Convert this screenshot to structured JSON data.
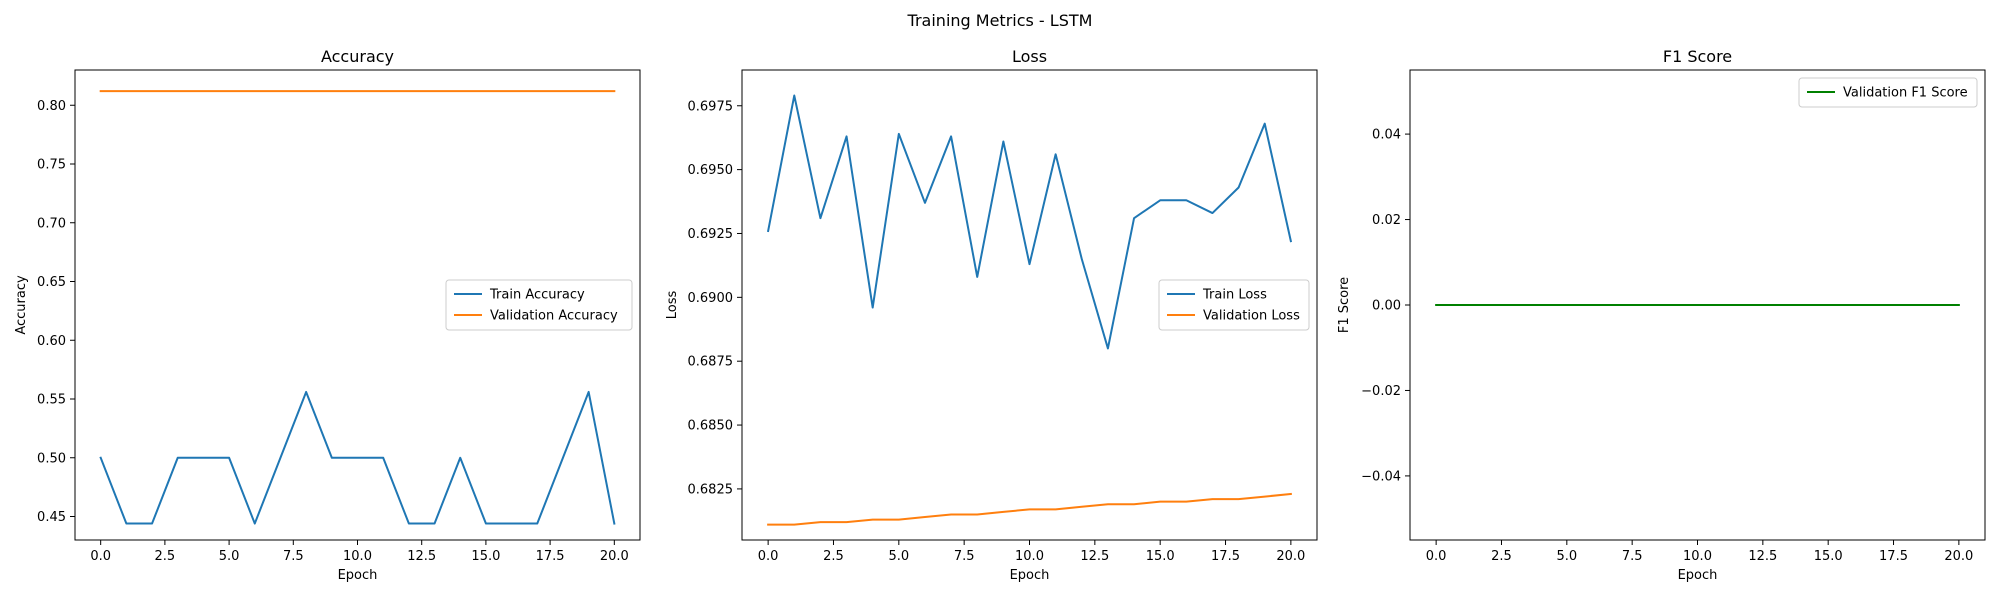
{
  "figure": {
    "title": "Training Metrics - LSTM"
  },
  "chart_data": [
    {
      "type": "line",
      "title": "Accuracy",
      "xlabel": "Epoch",
      "ylabel": "Accuracy",
      "xlim": [
        -1,
        21
      ],
      "ylim": [
        0.43,
        0.83
      ],
      "xticks": [
        0.0,
        2.5,
        5.0,
        7.5,
        10.0,
        12.5,
        15.0,
        17.5,
        20.0
      ],
      "xtick_labels": [
        "0.0",
        "2.5",
        "5.0",
        "7.5",
        "10.0",
        "12.5",
        "15.0",
        "17.5",
        "20.0"
      ],
      "yticks": [
        0.45,
        0.5,
        0.55,
        0.6,
        0.65,
        0.7,
        0.75,
        0.8
      ],
      "ytick_labels": [
        "0.45",
        "0.50",
        "0.55",
        "0.60",
        "0.65",
        "0.70",
        "0.75",
        "0.80"
      ],
      "legend": "center-right",
      "grid": false,
      "x": [
        0,
        1,
        2,
        3,
        4,
        5,
        6,
        7,
        8,
        9,
        10,
        11,
        12,
        13,
        14,
        15,
        16,
        17,
        18,
        19,
        20
      ],
      "series": [
        {
          "name": "Train Accuracy",
          "color": "#1f77b4",
          "values": [
            0.5,
            0.444,
            0.444,
            0.5,
            0.5,
            0.5,
            0.444,
            0.5,
            0.556,
            0.5,
            0.5,
            0.5,
            0.444,
            0.444,
            0.5,
            0.444,
            0.444,
            0.444,
            0.5,
            0.556,
            0.444
          ]
        },
        {
          "name": "Validation Accuracy",
          "color": "#ff7f0e",
          "values": [
            0.812,
            0.812,
            0.812,
            0.812,
            0.812,
            0.812,
            0.812,
            0.812,
            0.812,
            0.812,
            0.812,
            0.812,
            0.812,
            0.812,
            0.812,
            0.812,
            0.812,
            0.812,
            0.812,
            0.812,
            0.812
          ]
        }
      ]
    },
    {
      "type": "line",
      "title": "Loss",
      "xlabel": "Epoch",
      "ylabel": "Loss",
      "xlim": [
        -1,
        21
      ],
      "ylim": [
        0.6805,
        0.6989
      ],
      "xticks": [
        0.0,
        2.5,
        5.0,
        7.5,
        10.0,
        12.5,
        15.0,
        17.5,
        20.0
      ],
      "xtick_labels": [
        "0.0",
        "2.5",
        "5.0",
        "7.5",
        "10.0",
        "12.5",
        "15.0",
        "17.5",
        "20.0"
      ],
      "yticks": [
        0.6825,
        0.685,
        0.6875,
        0.69,
        0.6925,
        0.695,
        0.6975
      ],
      "ytick_labels": [
        "0.6825",
        "0.6850",
        "0.6875",
        "0.6900",
        "0.6925",
        "0.6950",
        "0.6975"
      ],
      "legend": "center-right",
      "grid": false,
      "x": [
        0,
        1,
        2,
        3,
        4,
        5,
        6,
        7,
        8,
        9,
        10,
        11,
        12,
        13,
        14,
        15,
        16,
        17,
        18,
        19,
        20
      ],
      "series": [
        {
          "name": "Train Loss",
          "color": "#1f77b4",
          "values": [
            0.6926,
            0.6979,
            0.6931,
            0.6963,
            0.6896,
            0.6964,
            0.6937,
            0.6963,
            0.6908,
            0.6961,
            0.6913,
            0.6956,
            0.6915,
            0.688,
            0.6931,
            0.6938,
            0.6938,
            0.6933,
            0.6943,
            0.6968,
            0.6922
          ]
        },
        {
          "name": "Validation Loss",
          "color": "#ff7f0e",
          "values": [
            0.6811,
            0.6811,
            0.6812,
            0.6812,
            0.6813,
            0.6813,
            0.6814,
            0.6815,
            0.6815,
            0.6816,
            0.6817,
            0.6817,
            0.6818,
            0.6819,
            0.6819,
            0.682,
            0.682,
            0.6821,
            0.6821,
            0.6822,
            0.6823
          ]
        }
      ]
    },
    {
      "type": "line",
      "title": "F1 Score",
      "xlabel": "Epoch",
      "ylabel": "F1 Score",
      "xlim": [
        -1,
        21
      ],
      "ylim": [
        -0.055,
        0.055
      ],
      "xticks": [
        0.0,
        2.5,
        5.0,
        7.5,
        10.0,
        12.5,
        15.0,
        17.5,
        20.0
      ],
      "xtick_labels": [
        "0.0",
        "2.5",
        "5.0",
        "7.5",
        "10.0",
        "12.5",
        "15.0",
        "17.5",
        "20.0"
      ],
      "yticks": [
        -0.04,
        -0.02,
        0.0,
        0.02,
        0.04
      ],
      "ytick_labels": [
        "−0.04",
        "−0.02",
        "0.00",
        "0.02",
        "0.04"
      ],
      "legend": "top-right",
      "grid": false,
      "x": [
        0,
        1,
        2,
        3,
        4,
        5,
        6,
        7,
        8,
        9,
        10,
        11,
        12,
        13,
        14,
        15,
        16,
        17,
        18,
        19,
        20
      ],
      "series": [
        {
          "name": "Validation F1 Score",
          "color": "#008000",
          "values": [
            0,
            0,
            0,
            0,
            0,
            0,
            0,
            0,
            0,
            0,
            0,
            0,
            0,
            0,
            0,
            0,
            0,
            0,
            0,
            0,
            0
          ]
        }
      ]
    }
  ]
}
